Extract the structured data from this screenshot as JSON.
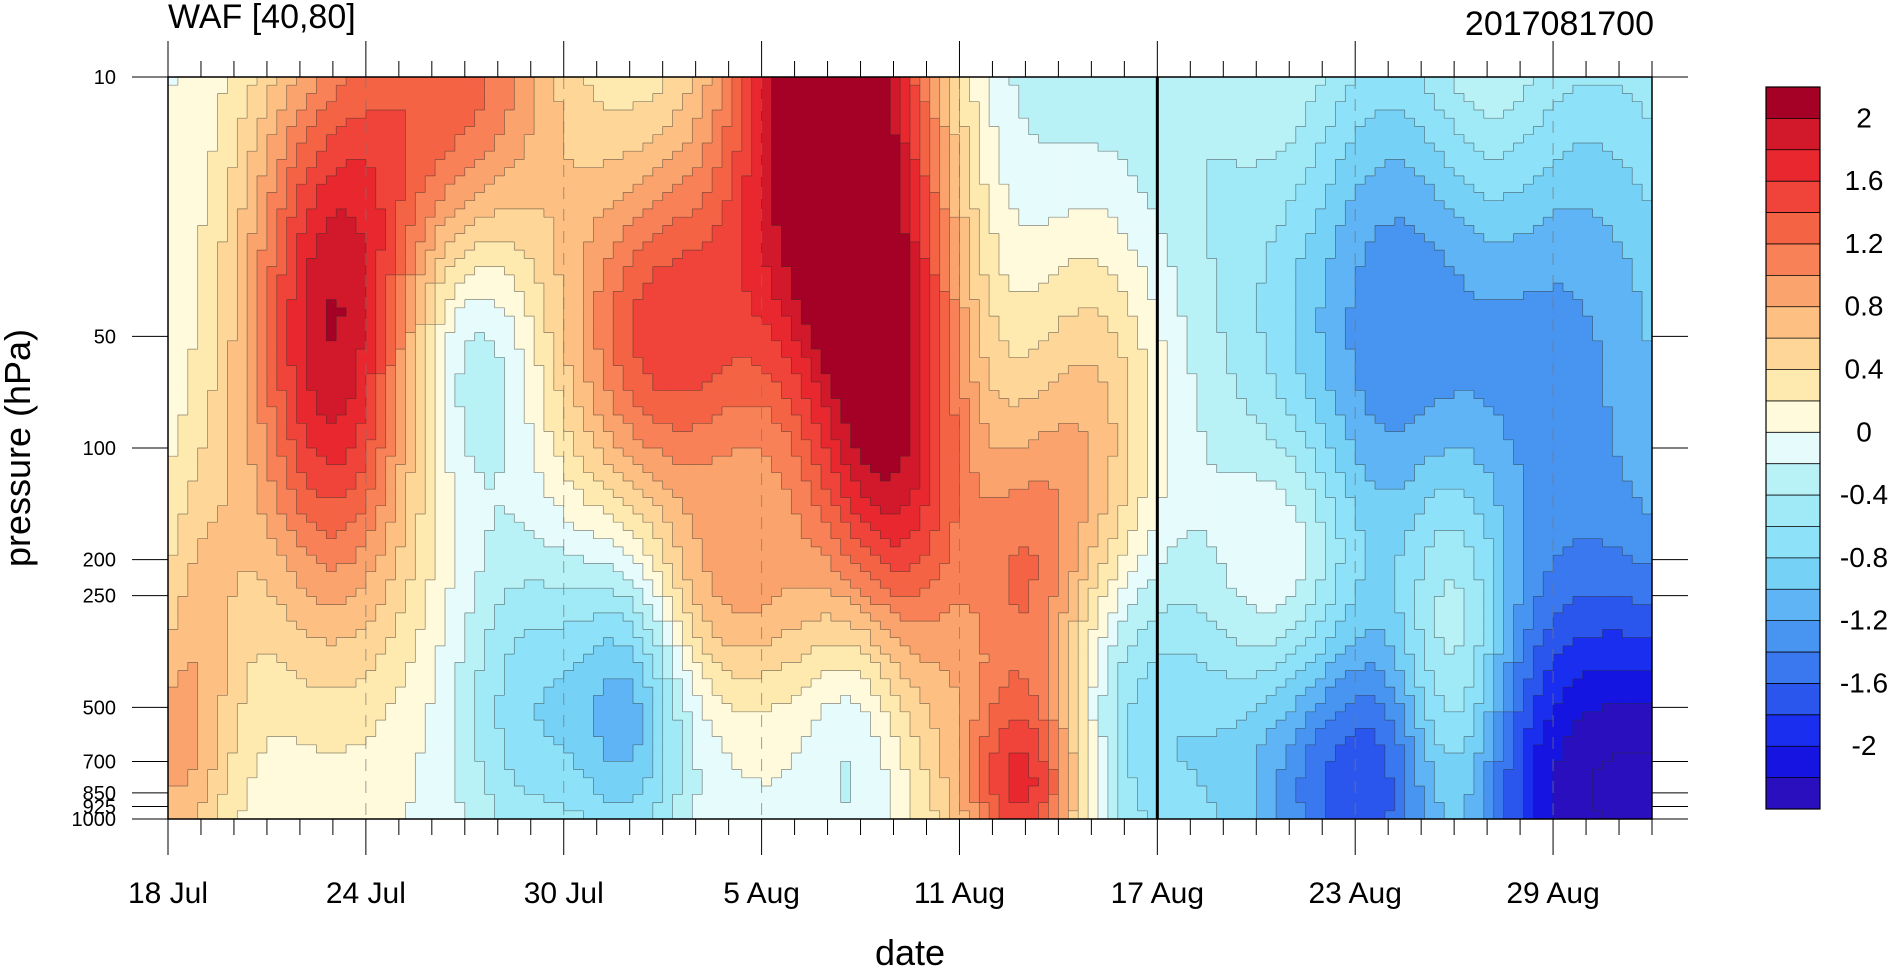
{
  "chart_data": {
    "type": "heatmap",
    "title_left": "WAF [40,80]",
    "title_right": "2017081700",
    "xlabel": "date",
    "ylabel": "pressure (hPa)",
    "x_tick_labels": [
      "18 Jul",
      "24 Jul",
      "30 Jul",
      "5 Aug",
      "11 Aug",
      "17 Aug",
      "23 Aug",
      "29 Aug"
    ],
    "x_tick_day_index": [
      0,
      6,
      12,
      18,
      24,
      30,
      36,
      42
    ],
    "x_day_count": 46,
    "y_levels": [
      1000,
      925,
      850,
      700,
      500,
      250,
      200,
      100,
      50,
      10
    ],
    "y_tick_labels": [
      "10",
      "50",
      "100",
      "200",
      "250",
      "500",
      "700",
      "850",
      "925",
      "1000"
    ],
    "y_tick_values": [
      10,
      50,
      100,
      200,
      250,
      500,
      700,
      850,
      925,
      1000
    ],
    "y_scale": "log",
    "ylim": [
      1000,
      10
    ],
    "vertical_marker_label": "17 Aug",
    "vertical_marker_day_index": 30,
    "colorbar_labels": [
      "2",
      "1.6",
      "1.2",
      "0.8",
      "0.4",
      "0",
      "-0.4",
      "-0.8",
      "-1.2",
      "-1.6",
      "-2"
    ],
    "colorbar_levels": [
      2.2,
      2,
      1.8,
      1.6,
      1.4,
      1.2,
      1.0,
      0.8,
      0.6,
      0.4,
      0.2,
      0,
      -0.2,
      -0.4,
      -0.6,
      -0.8,
      -1.0,
      -1.2,
      -1.4,
      -1.6,
      -1.8,
      -2.0,
      -2.2
    ],
    "colors": [
      "#a50026",
      "#d2182b",
      "#e8282e",
      "#f0443a",
      "#f56345",
      "#f98157",
      "#fba36c",
      "#fdbf82",
      "#fdd698",
      "#fee9ae",
      "#fffadc",
      "#e6fbfb",
      "#b8f1f6",
      "#a0e9f7",
      "#8de1f8",
      "#76d1f7",
      "#5eb4f4",
      "#4795f0",
      "#3a78ef",
      "#2b56ed",
      "#1a2ef0",
      "#1514e0",
      "#2a0fbe"
    ],
    "anomaly_centers": [
      {
        "day": 5,
        "level": 50,
        "amp": 2.0,
        "w_day": 2.0,
        "w_logp": 0.55
      },
      {
        "day": 9,
        "level": 10,
        "amp": 1.3,
        "w_day": 2.2,
        "w_logp": 0.5
      },
      {
        "day": 15,
        "level": 50,
        "amp": 1.5,
        "w_day": 2.2,
        "w_logp": 0.35
      },
      {
        "day": 20,
        "level": 10,
        "amp": 2.6,
        "w_day": 2.2,
        "w_logp": 0.6
      },
      {
        "day": 22,
        "level": 100,
        "amp": 1.8,
        "w_day": 1.8,
        "w_logp": 0.55
      },
      {
        "day": 9,
        "level": 50,
        "amp": -0.9,
        "w_day": 1.6,
        "w_logp": 0.3
      },
      {
        "day": 0,
        "level": 700,
        "amp": 0.8,
        "w_day": 1.3,
        "w_logp": 0.25
      },
      {
        "day": 1,
        "level": 250,
        "amp": 0.5,
        "w_day": 1.0,
        "w_logp": 0.3
      },
      {
        "day": 17,
        "level": 250,
        "amp": 0.7,
        "w_day": 1.8,
        "w_logp": 0.2
      },
      {
        "day": 26,
        "level": 850,
        "amp": 1.6,
        "w_day": 1.4,
        "w_logp": 0.2
      },
      {
        "day": 26,
        "level": 250,
        "amp": 1.0,
        "w_day": 1.3,
        "w_logp": 0.3
      },
      {
        "day": 28,
        "level": 100,
        "amp": 0.9,
        "w_day": 1.6,
        "w_logp": 0.5
      },
      {
        "day": 14,
        "level": 500,
        "amp": -1.0,
        "w_day": 1.2,
        "w_logp": 0.3
      },
      {
        "day": 11,
        "level": 500,
        "amp": -0.7,
        "w_day": 1.5,
        "w_logp": 0.3
      },
      {
        "day": 21,
        "level": 500,
        "amp": -0.7,
        "w_day": 1.2,
        "w_logp": 0.3
      },
      {
        "day": 29,
        "level": 500,
        "amp": -0.8,
        "w_day": 2.0,
        "w_logp": 0.35
      },
      {
        "day": 28,
        "level": 10,
        "amp": -0.4,
        "w_day": 4.0,
        "w_logp": 0.6
      },
      {
        "day": 37,
        "level": 50,
        "amp": -1.1,
        "w_day": 3.0,
        "w_logp": 0.6
      },
      {
        "day": 43,
        "level": 50,
        "amp": -1.0,
        "w_day": 3.5,
        "w_logp": 0.6
      },
      {
        "day": 36,
        "level": 850,
        "amp": -1.2,
        "w_day": 3.0,
        "w_logp": 0.3
      },
      {
        "day": 45,
        "level": 925,
        "amp": -2.3,
        "w_day": 5.0,
        "w_logp": 0.45
      },
      {
        "day": 39,
        "level": 500,
        "amp": 1.3,
        "w_day": 1.3,
        "w_logp": 0.45
      },
      {
        "day": 34,
        "level": 200,
        "amp": 0.6,
        "w_day": 1.5,
        "w_logp": 0.25
      },
      {
        "day": 40,
        "level": 10,
        "amp": 0.5,
        "w_day": 1.4,
        "w_logp": 0.4
      },
      {
        "day": 34,
        "level": 10,
        "amp": 0.3,
        "w_day": 1.3,
        "w_logp": 0.3
      }
    ]
  }
}
